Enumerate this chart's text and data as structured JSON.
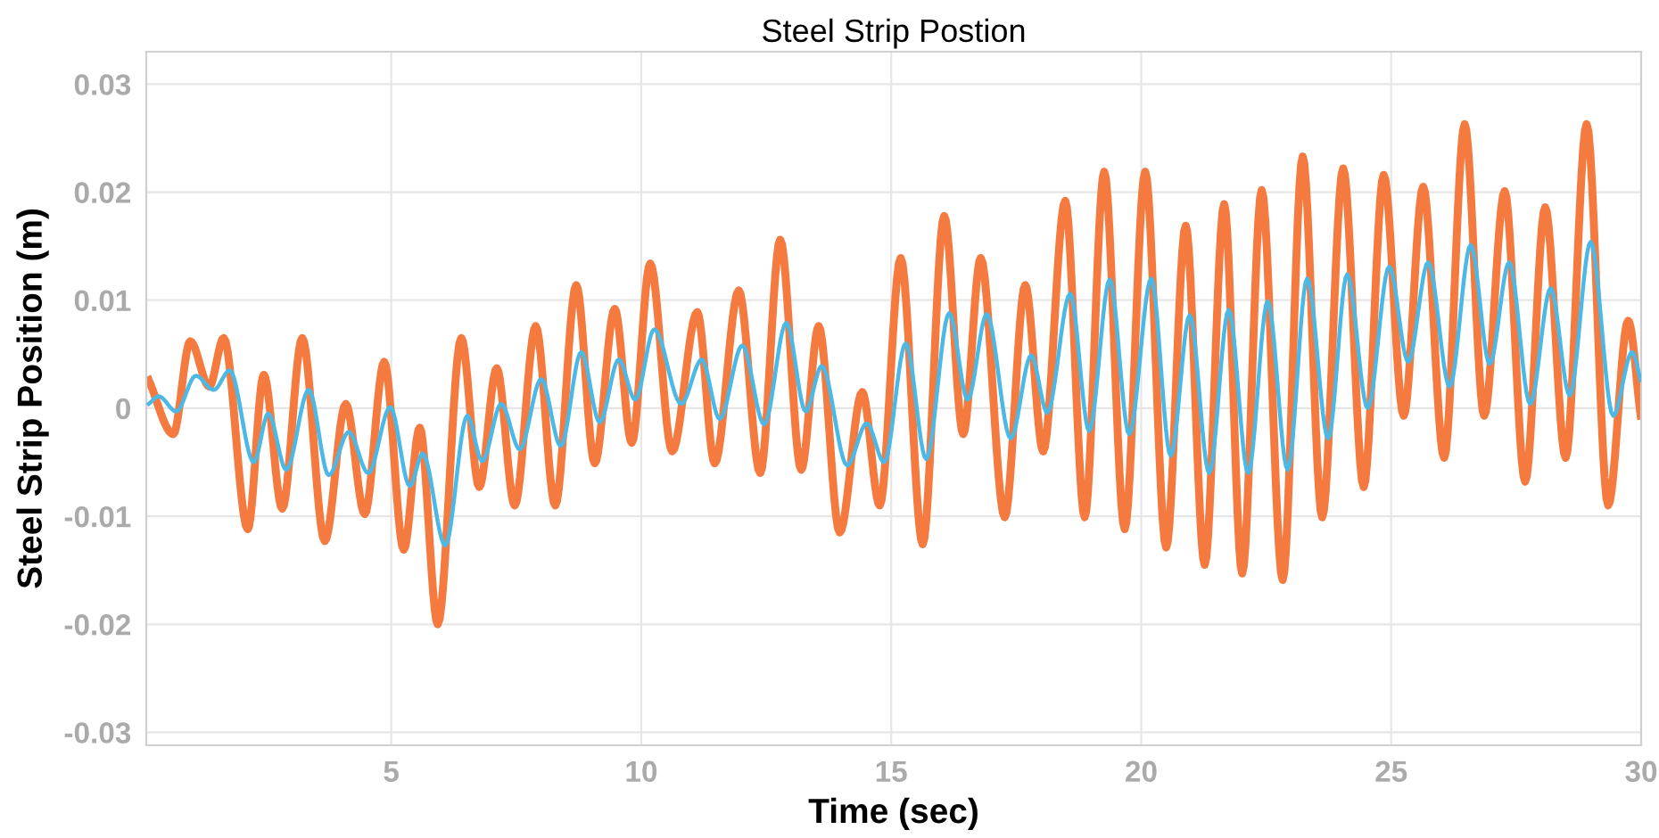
{
  "chart_data": {
    "type": "line",
    "title": "Steel Strip Postion",
    "xlabel": "Time (sec)",
    "ylabel": "Steel Strip Position (m)",
    "xlim": [
      0.1,
      30
    ],
    "xticks": [
      5,
      10,
      15,
      20,
      25,
      30
    ],
    "ylim": [
      -0.0312,
      0.033
    ],
    "yticks": [
      -0.03,
      -0.02,
      -0.01,
      0,
      0.01,
      0.02,
      0.03
    ],
    "grid": true,
    "legend": false,
    "marker": "none",
    "line_style": "solid",
    "series": [
      {
        "color": "#f47a3f",
        "x": [
          0.15,
          0.64,
          0.98,
          1.36,
          1.65,
          2.13,
          2.45,
          2.82,
          3.22,
          3.67,
          4.09,
          4.47,
          4.86,
          5.25,
          5.57,
          5.93,
          6.4,
          6.76,
          7.11,
          7.47,
          7.89,
          8.28,
          8.7,
          9.07,
          9.47,
          9.81,
          10.18,
          10.62,
          11.12,
          11.47,
          11.95,
          12.38,
          12.78,
          13.2,
          13.55,
          13.97,
          14.42,
          14.77,
          15.19,
          15.63,
          16.06,
          16.44,
          16.79,
          17.27,
          17.68,
          18.04,
          18.48,
          18.87,
          19.26,
          19.67,
          20.08,
          20.5,
          20.89,
          21.27,
          21.66,
          22.02,
          22.41,
          22.83,
          23.23,
          23.62,
          24.04,
          24.45,
          24.85,
          25.25,
          25.64,
          26.06,
          26.47,
          26.86,
          27.27,
          27.68,
          28.08,
          28.49,
          28.91,
          29.34,
          29.74,
          29.99
        ],
        "values": [
          0.0026,
          -0.0024,
          0.0062,
          0.002,
          0.0065,
          -0.0112,
          0.0031,
          -0.0093,
          0.0065,
          -0.0123,
          0.0004,
          -0.0098,
          0.0043,
          -0.0131,
          -0.0018,
          -0.02,
          0.0065,
          -0.0073,
          0.0037,
          -0.009,
          0.0076,
          -0.009,
          0.0114,
          -0.0051,
          0.0092,
          -0.0032,
          0.0134,
          -0.004,
          0.0089,
          -0.0051,
          0.0109,
          -0.006,
          0.0156,
          -0.0057,
          0.0076,
          -0.0115,
          0.0015,
          -0.009,
          0.0139,
          -0.0126,
          0.0178,
          -0.0024,
          0.0139,
          -0.0101,
          0.0114,
          -0.004,
          0.0192,
          -0.0101,
          0.0219,
          -0.0112,
          0.0219,
          -0.0129,
          0.0169,
          -0.0145,
          0.0189,
          -0.0153,
          0.0202,
          -0.0159,
          0.0233,
          -0.0101,
          0.0222,
          -0.0073,
          0.0216,
          -0.0007,
          0.0205,
          -0.0046,
          0.0263,
          -0.0007,
          0.0201,
          -0.0068,
          0.0186,
          -0.0046,
          0.0263,
          -0.009,
          0.0081,
          -0.0007
        ]
      },
      {
        "color": "#4cb8e6",
        "x": [
          0.15,
          0.35,
          0.7,
          1.09,
          1.45,
          1.77,
          2.25,
          2.54,
          2.9,
          3.35,
          3.75,
          4.15,
          4.54,
          4.98,
          5.37,
          5.63,
          6.08,
          6.52,
          6.82,
          7.2,
          7.57,
          8.0,
          8.39,
          8.8,
          9.17,
          9.55,
          9.88,
          10.26,
          10.8,
          11.21,
          11.57,
          12.02,
          12.46,
          12.9,
          13.29,
          13.61,
          14.12,
          14.51,
          14.86,
          15.29,
          15.7,
          16.16,
          16.53,
          16.91,
          17.39,
          17.8,
          18.12,
          18.58,
          18.96,
          19.37,
          19.76,
          20.2,
          20.59,
          20.97,
          21.36,
          21.75,
          22.14,
          22.53,
          22.93,
          23.32,
          23.74,
          24.12,
          24.53,
          24.96,
          25.34,
          25.74,
          26.17,
          26.59,
          26.97,
          27.36,
          27.78,
          28.19,
          28.57,
          28.99,
          29.44,
          29.82,
          29.99
        ],
        "values": [
          0.0004,
          0.0011,
          -0.0003,
          0.003,
          0.0017,
          0.0035,
          -0.005,
          -0.0005,
          -0.0057,
          0.0017,
          -0.0062,
          -0.0022,
          -0.006,
          0.0001,
          -0.0072,
          -0.0042,
          -0.0127,
          -0.0007,
          -0.0049,
          0.0004,
          -0.0038,
          0.0027,
          -0.0035,
          0.0052,
          -0.0013,
          0.0045,
          0.0008,
          0.0073,
          0.0004,
          0.0045,
          -0.001,
          0.0058,
          -0.0015,
          0.0079,
          -0.0003,
          0.0039,
          -0.0053,
          -0.0014,
          -0.005,
          0.006,
          -0.0047,
          0.0088,
          0.0008,
          0.0087,
          -0.0028,
          0.0049,
          -0.0004,
          0.0106,
          -0.0021,
          0.0119,
          -0.0024,
          0.012,
          -0.0044,
          0.0086,
          -0.006,
          0.0091,
          -0.006,
          0.0099,
          -0.0057,
          0.012,
          -0.0028,
          0.0124,
          0.0,
          0.0131,
          0.0043,
          0.0135,
          0.002,
          0.0151,
          0.0041,
          0.0135,
          0.0004,
          0.0111,
          0.0012,
          0.0154,
          -0.0007,
          0.0052,
          0.0026
        ]
      }
    ]
  }
}
